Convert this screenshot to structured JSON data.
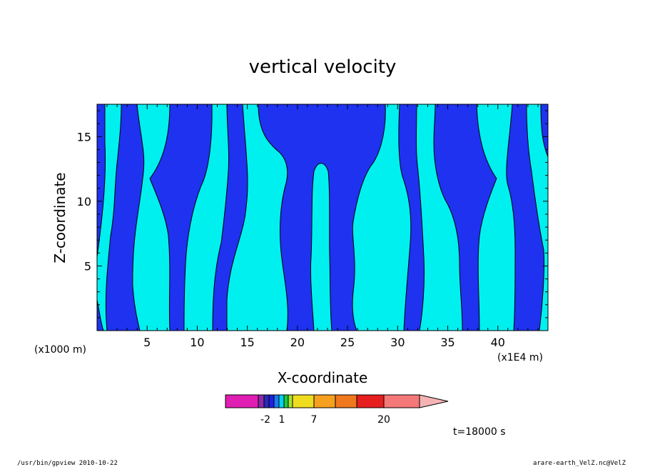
{
  "chart_data": {
    "type": "heatmap",
    "title": "vertical velocity",
    "xlabel": "X-coordinate",
    "ylabel": "Z-coordinate",
    "x_scale_note": "(x1000 m)",
    "x_unit_note": "(x1E4 m)",
    "xlim": [
      0,
      45
    ],
    "ylim": [
      0,
      17.5
    ],
    "x_ticks": [
      5,
      10,
      15,
      20,
      25,
      30,
      35,
      40
    ],
    "y_ticks": [
      5,
      10,
      15
    ],
    "x_tick_labels": [
      "5",
      "10",
      "15",
      "20",
      "25",
      "30",
      "35",
      "40"
    ],
    "y_tick_labels": [
      "5",
      "10",
      "15"
    ],
    "time_label": "t=18000 s",
    "colorbar": {
      "labels": [
        "-2",
        "1",
        "7",
        "20"
      ],
      "colors": [
        "#e01eb4",
        "#8c2aa8",
        "#2a2ab4",
        "#1e1ee6",
        "#1e78f0",
        "#00d2f0",
        "#1ec83c",
        "#a0e632",
        "#f0dc1e",
        "#fac800",
        "#f5a01e",
        "#f0781e",
        "#e61e1e",
        "#f57878",
        "#f5b4b4"
      ]
    },
    "fields": {
      "background_color": "#00f0f0",
      "contour_fill_color": "#1e32f0"
    }
  },
  "footer": {
    "left": "/usr/bin/gpview   2010-10-22",
    "right": "arare-earth_VelZ.nc@VelZ"
  }
}
